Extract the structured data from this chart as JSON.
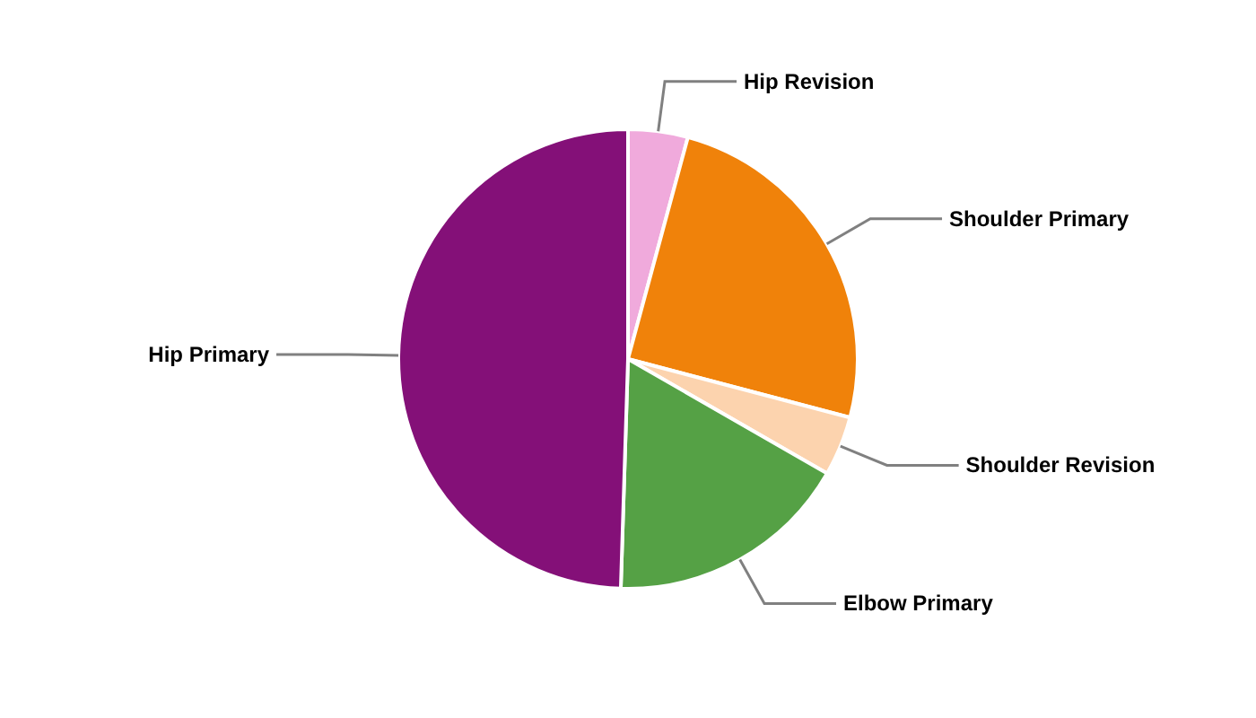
{
  "chart_data": {
    "type": "pie",
    "categories": [
      "Hip Revision",
      "Shoulder Primary",
      "Shoulder Revision",
      "Elbow Primary",
      "Hip Primary"
    ],
    "values": [
      4.2,
      24.9,
      4.2,
      17.2,
      49.5
    ],
    "colors": [
      "#f0aadc",
      "#f0820a",
      "#fcd3ae",
      "#55a145",
      "#841078"
    ]
  }
}
